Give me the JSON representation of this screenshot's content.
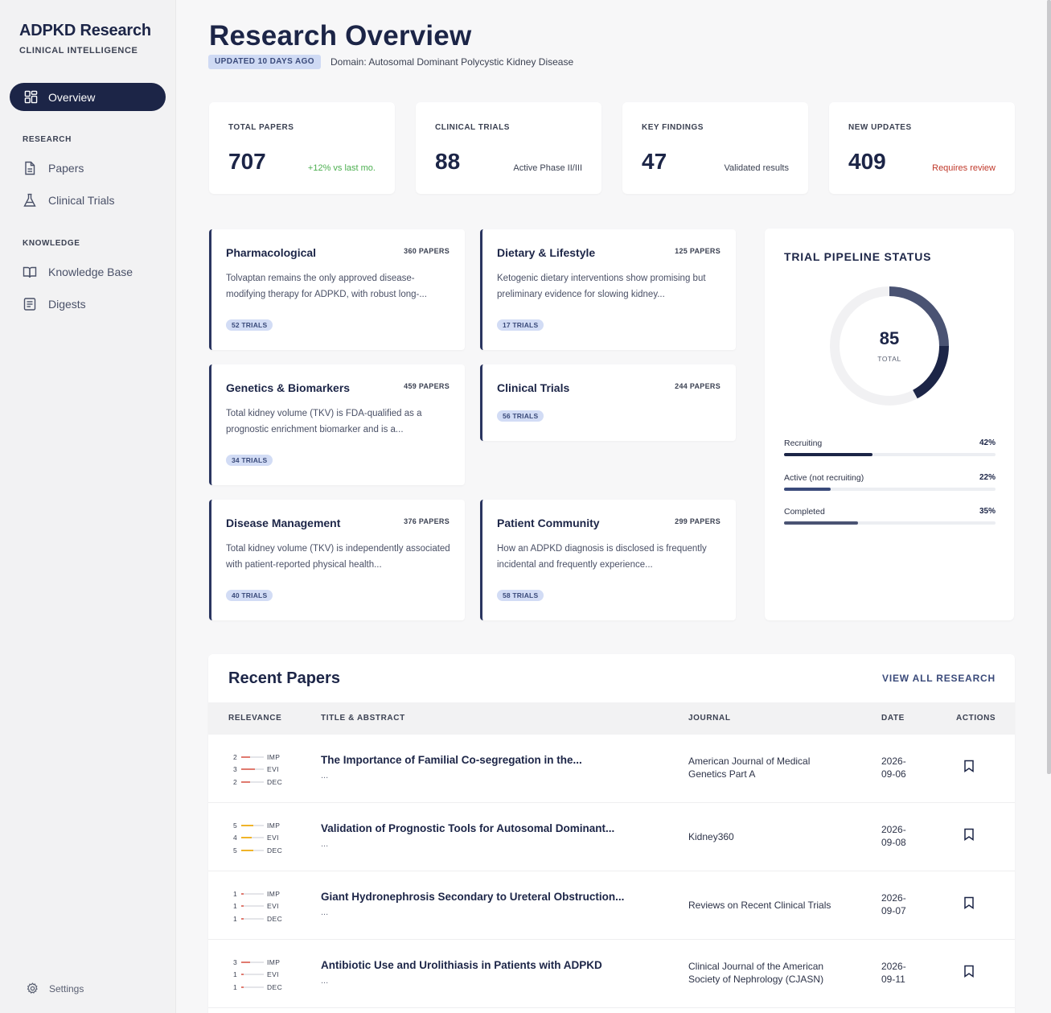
{
  "sidebar": {
    "brand": "ADPKD Research",
    "brand_sub": "CLINICAL INTELLIGENCE",
    "active_item": {
      "label": "Overview",
      "icon": "dashboard-icon"
    },
    "sections": [
      {
        "title": "RESEARCH",
        "items": [
          {
            "label": "Papers",
            "icon": "document-icon"
          },
          {
            "label": "Clinical Trials",
            "icon": "flask-icon"
          }
        ]
      },
      {
        "title": "KNOWLEDGE",
        "items": [
          {
            "label": "Knowledge Base",
            "icon": "book-icon"
          },
          {
            "label": "Digests",
            "icon": "list-document-icon"
          }
        ]
      }
    ],
    "settings_label": "Settings"
  },
  "header": {
    "title": "Research Overview",
    "updated_badge": "UPDATED 10 DAYS AGO",
    "domain": "Domain: Autosomal Dominant Polycystic Kidney Disease"
  },
  "stats": [
    {
      "label": "TOTAL PAPERS",
      "value": "707",
      "note": "+12% vs last mo.",
      "note_color": "#4caf50"
    },
    {
      "label": "CLINICAL TRIALS",
      "value": "88",
      "note": "Active Phase II/III",
      "note_color": "#3b4152"
    },
    {
      "label": "KEY FINDINGS",
      "value": "47",
      "note": "Validated results",
      "note_color": "#3b4152"
    },
    {
      "label": "NEW UPDATES",
      "value": "409",
      "note": "Requires review",
      "note_color": "#c0392b"
    }
  ],
  "topics": [
    {
      "title": "Pharmacological",
      "count": "360 PAPERS",
      "desc": "Tolvaptan remains the only approved disease-modifying therapy for ADPKD, with robust long-...",
      "trials": "52 TRIALS"
    },
    {
      "title": "Dietary & Lifestyle",
      "count": "125 PAPERS",
      "desc": "Ketogenic dietary interventions show promising but preliminary evidence for slowing kidney...",
      "trials": "17 TRIALS"
    },
    {
      "title": "Genetics & Biomarkers",
      "count": "459 PAPERS",
      "desc": "Total kidney volume (TKV) is FDA-qualified as a prognostic enrichment biomarker and is a...",
      "trials": "34 TRIALS"
    },
    {
      "title": "Clinical Trials",
      "count": "244 PAPERS",
      "desc": "",
      "trials": "56 TRIALS"
    },
    {
      "title": "Disease Management",
      "count": "376 PAPERS",
      "desc": "Total kidney volume (TKV) is independently associated with patient-reported physical health...",
      "trials": "40 TRIALS"
    },
    {
      "title": "Patient Community",
      "count": "299 PAPERS",
      "desc": "How an ADPKD diagnosis is disclosed is frequently incidental and frequently experience...",
      "trials": "58 TRIALS"
    }
  ],
  "pipeline": {
    "title": "TRIAL PIPELINE STATUS",
    "total": "85",
    "total_label": "TOTAL",
    "rows": [
      {
        "label": "Recruiting",
        "pct_text": "42%",
        "pct": 42,
        "color": "#1c2547"
      },
      {
        "label": "Active (not recruiting)",
        "pct_text": "22%",
        "pct": 22,
        "color": "#3a4a7a"
      },
      {
        "label": "Completed",
        "pct_text": "35%",
        "pct": 35,
        "color": "#4a5373"
      }
    ]
  },
  "recent": {
    "title": "Recent Papers",
    "view_all": "VIEW ALL RESEARCH",
    "columns": [
      "RELEVANCE",
      "TITLE & ABSTRACT",
      "JOURNAL",
      "DATE",
      "ACTIONS"
    ],
    "metric_tags": [
      "IMP",
      "EVI",
      "DEC"
    ],
    "rows": [
      {
        "scores": [
          "2",
          "3",
          "2"
        ],
        "bar_color": "#e07a6f",
        "title": "The Importance of Familial Co-segregation in the...",
        "abstract": "...",
        "journal": "American Journal of Medical Genetics Part A",
        "date": "2026-09-06",
        "action_icon": "bookmark-icon"
      },
      {
        "scores": [
          "5",
          "4",
          "5"
        ],
        "bar_color": "#f0b429",
        "title": "Validation of Prognostic Tools for Autosomal Dominant...",
        "abstract": "...",
        "journal": "Kidney360",
        "date": "2026-09-08",
        "action_icon": "bookmark-icon"
      },
      {
        "scores": [
          "1",
          "1",
          "1"
        ],
        "bar_color": "#e07a6f",
        "title": "Giant Hydronephrosis Secondary to Ureteral Obstruction...",
        "abstract": "...",
        "journal": "Reviews on Recent Clinical Trials",
        "date": "2026-09-07",
        "action_icon": "bookmark-icon"
      },
      {
        "scores": [
          "3",
          "1",
          "1"
        ],
        "bar_color": "#e07a6f",
        "title": "Antibiotic Use and Urolithiasis in Patients with ADPKD",
        "abstract": "...",
        "journal": "Clinical Journal of the American Society of Nephrology (CJASN)",
        "date": "2026-09-11",
        "action_icon": "bookmark-icon"
      }
    ]
  }
}
